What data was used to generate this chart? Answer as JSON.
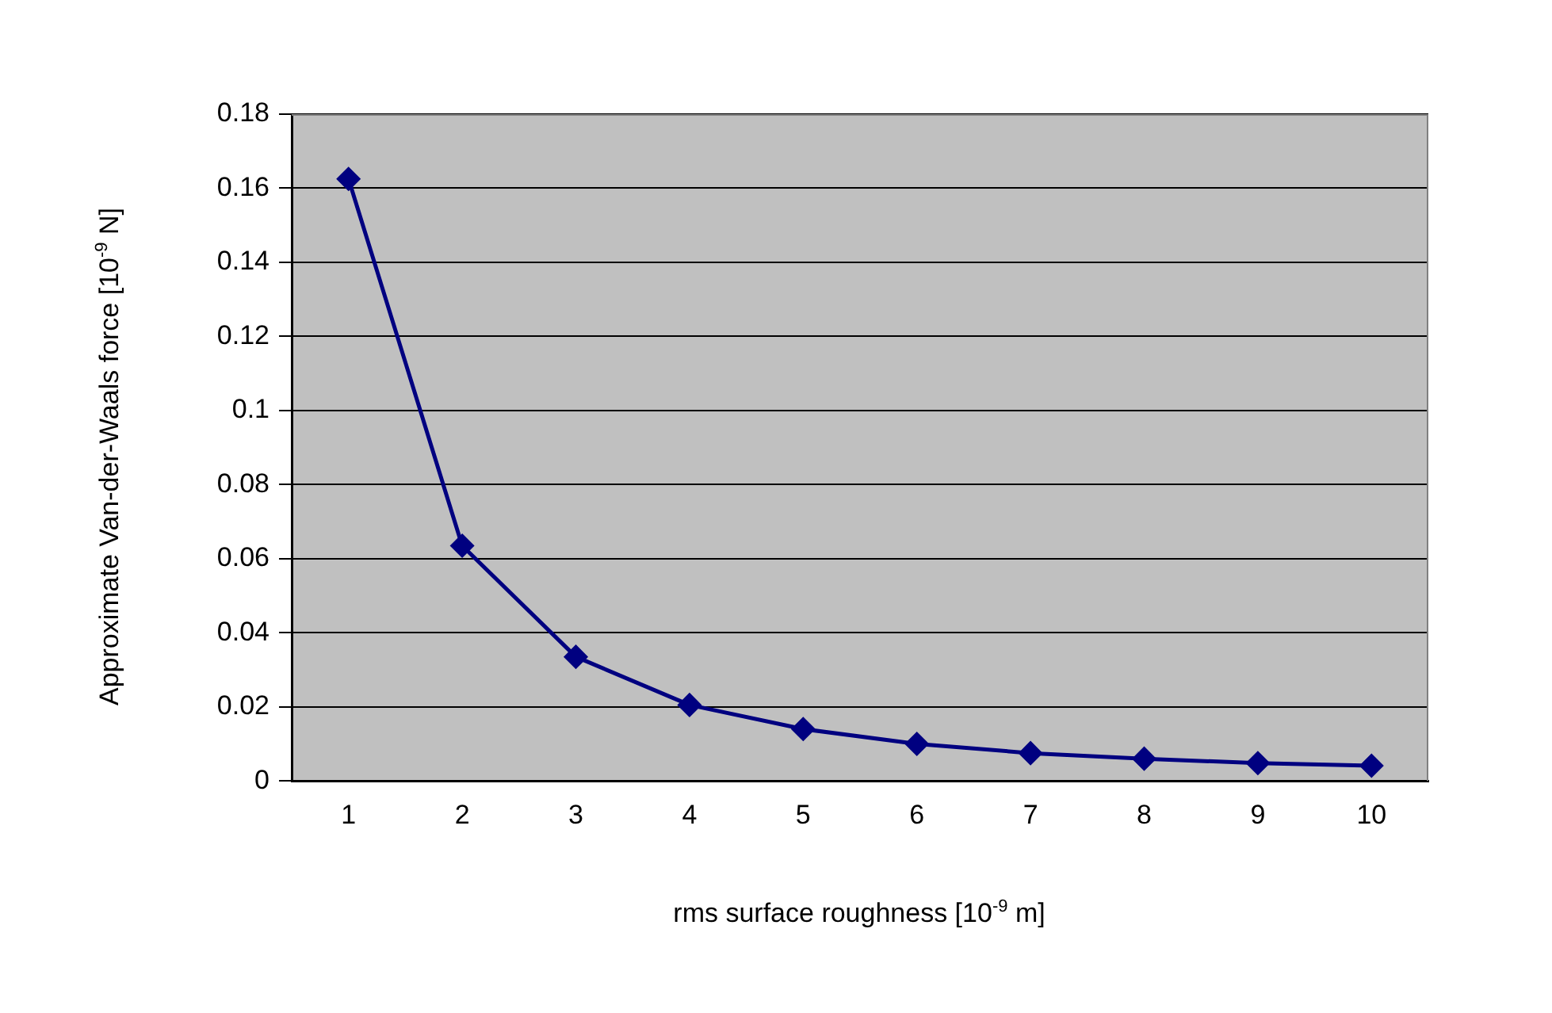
{
  "chart_data": {
    "type": "line",
    "xlabel": "rms surface roughness [10$^{-9}$ m]",
    "ylabel": "Approximate Van-der-Waals force [10$^{-9}$ N]",
    "categories": [
      "1",
      "2",
      "3",
      "4",
      "5",
      "6",
      "7",
      "8",
      "9",
      "10"
    ],
    "series": [
      {
        "color": "#000080",
        "values": [
          0.1625,
          0.0635,
          0.0335,
          0.0205,
          0.014,
          0.01,
          0.0075,
          0.006,
          0.0048,
          0.0041
        ]
      }
    ],
    "ylim": [
      0,
      0.18
    ],
    "yticks": [
      0,
      0.02,
      0.04,
      0.06,
      0.08,
      0.1,
      0.12,
      0.14,
      0.16,
      0.18
    ],
    "grid": "y",
    "legend": false,
    "marker": "diamond",
    "line_style": "solid"
  }
}
